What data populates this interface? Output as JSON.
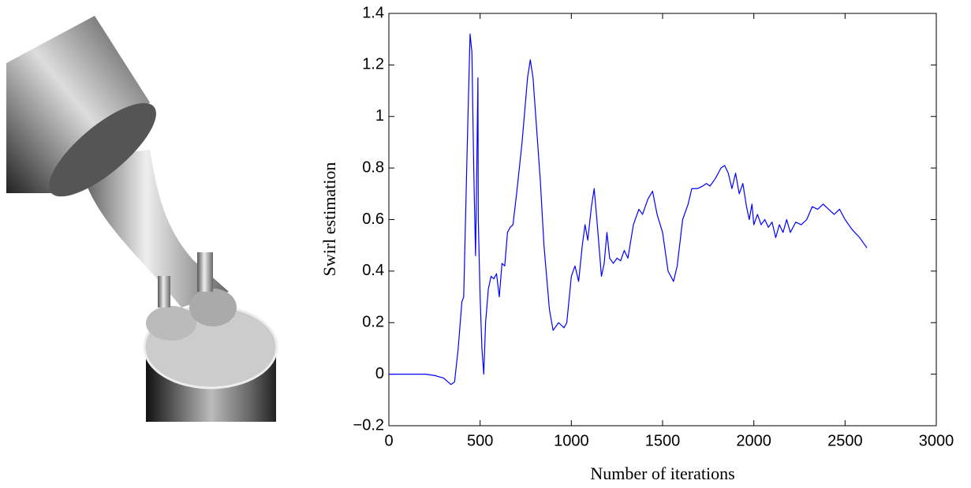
{
  "chart_data": {
    "type": "line",
    "xlabel": "Number of iterations",
    "ylabel": "Swirl estimation",
    "color": "#0000ff",
    "xlim": [
      0,
      3000
    ],
    "xticks": [
      0,
      500,
      1000,
      1500,
      2000,
      2500,
      3000
    ],
    "ylim": [
      -0.2,
      1.4
    ],
    "yticks": [
      {
        "value": -0.2,
        "label": "−0.2"
      },
      0,
      0.2,
      0.4,
      0.6,
      0.8,
      1,
      1.2,
      1.4
    ],
    "x": [
      0,
      100,
      200,
      250,
      300,
      340,
      360,
      380,
      400,
      410,
      430,
      445,
      455,
      465,
      475,
      480,
      488,
      490,
      500,
      510,
      520,
      530,
      545,
      560,
      575,
      590,
      605,
      620,
      635,
      650,
      665,
      680,
      700,
      730,
      760,
      775,
      790,
      810,
      830,
      850,
      880,
      900,
      930,
      960,
      975,
      1000,
      1020,
      1040,
      1060,
      1075,
      1090,
      1110,
      1125,
      1140,
      1165,
      1180,
      1195,
      1210,
      1230,
      1250,
      1270,
      1290,
      1310,
      1340,
      1370,
      1390,
      1420,
      1445,
      1470,
      1500,
      1530,
      1560,
      1580,
      1610,
      1640,
      1660,
      1690,
      1720,
      1740,
      1760,
      1790,
      1820,
      1840,
      1860,
      1880,
      1900,
      1920,
      1940,
      1960,
      1975,
      1990,
      2000,
      2020,
      2040,
      2060,
      2080,
      2100,
      2120,
      2140,
      2160,
      2180,
      2200,
      2230,
      2260,
      2290,
      2320,
      2350,
      2380,
      2410,
      2440,
      2470,
      2500,
      2540,
      2580,
      2620
    ],
    "values": [
      0,
      0,
      0,
      -0.005,
      -0.015,
      -0.04,
      -0.03,
      0.1,
      0.28,
      0.3,
      0.9,
      1.32,
      1.25,
      0.8,
      0.46,
      0.7,
      1.15,
      0.6,
      0.3,
      0.1,
      0.0,
      0.2,
      0.33,
      0.38,
      0.37,
      0.39,
      0.3,
      0.43,
      0.42,
      0.55,
      0.57,
      0.58,
      0.7,
      0.9,
      1.15,
      1.22,
      1.15,
      0.95,
      0.75,
      0.5,
      0.25,
      0.17,
      0.2,
      0.18,
      0.2,
      0.38,
      0.42,
      0.36,
      0.5,
      0.58,
      0.52,
      0.65,
      0.72,
      0.6,
      0.38,
      0.43,
      0.55,
      0.45,
      0.43,
      0.45,
      0.44,
      0.48,
      0.45,
      0.58,
      0.64,
      0.62,
      0.68,
      0.71,
      0.62,
      0.55,
      0.4,
      0.36,
      0.42,
      0.6,
      0.66,
      0.72,
      0.72,
      0.73,
      0.74,
      0.73,
      0.76,
      0.8,
      0.81,
      0.78,
      0.72,
      0.78,
      0.7,
      0.74,
      0.65,
      0.6,
      0.66,
      0.58,
      0.62,
      0.58,
      0.6,
      0.57,
      0.59,
      0.53,
      0.58,
      0.55,
      0.6,
      0.55,
      0.59,
      0.58,
      0.6,
      0.65,
      0.64,
      0.66,
      0.64,
      0.62,
      0.64,
      0.6,
      0.56,
      0.53,
      0.49
    ]
  }
}
